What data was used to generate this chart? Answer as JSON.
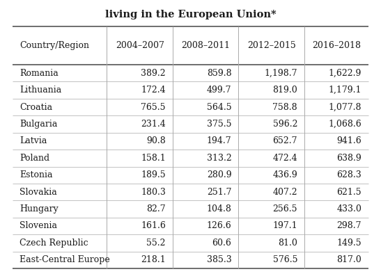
{
  "title": "living in the European Union*",
  "columns": [
    "Country/Region",
    "2004–2007",
    "2008–2011",
    "2012–2015",
    "2016–2018"
  ],
  "rows": [
    [
      "Romania",
      "389.2",
      "859.8",
      "1,198.7",
      "1,622.9"
    ],
    [
      "Lithuania",
      "172.4",
      "499.7",
      "819.0",
      "1,179.1"
    ],
    [
      "Croatia",
      "765.5",
      "564.5",
      "758.8",
      "1,077.8"
    ],
    [
      "Bulgaria",
      "231.4",
      "375.5",
      "596.2",
      "1,068.6"
    ],
    [
      "Latvia",
      "90.8",
      "194.7",
      "652.7",
      "941.6"
    ],
    [
      "Poland",
      "158.1",
      "313.2",
      "472.4",
      "638.9"
    ],
    [
      "Estonia",
      "189.5",
      "280.9",
      "436.9",
      "628.3"
    ],
    [
      "Slovakia",
      "180.3",
      "251.7",
      "407.2",
      "621.5"
    ],
    [
      "Hungary",
      "82.7",
      "104.8",
      "256.5",
      "433.0"
    ],
    [
      "Slovenia",
      "161.6",
      "126.6",
      "197.1",
      "298.7"
    ],
    [
      "Czech Republic",
      "55.2",
      "60.6",
      "81.0",
      "149.5"
    ],
    [
      "East-Central Europe",
      "218.1",
      "385.3",
      "576.5",
      "817.0"
    ]
  ],
  "background_color": "#ffffff",
  "line_color_thick": "#555555",
  "line_color_thin": "#aaaaaa",
  "text_color": "#1a1a1a",
  "title_fontsize": 10.5,
  "header_fontsize": 9.0,
  "cell_fontsize": 9.0,
  "fig_width": 5.47,
  "fig_height": 3.94,
  "dpi": 100
}
